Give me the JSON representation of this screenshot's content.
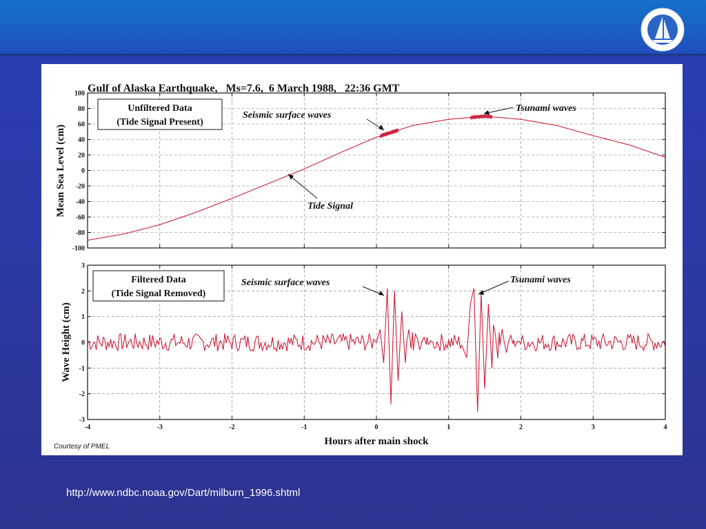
{
  "footer": {
    "url": "http://www.ndbc.noaa.gov/Dart/milburn_1996.shtml"
  },
  "colors": {
    "trace": "#cc1f3a",
    "header_blue": "#1a5fc2",
    "background_blue": "#2b3aa6"
  },
  "logo": {
    "icon": "sailboat-seal-icon"
  },
  "chart_data": {
    "title": "Gulf of Alaska Earthquake,   Ms=7.6,  6 March 1988,   22:36 GMT",
    "courtesy": "Courtesy of PMEL",
    "xlabel": "Hours after main shock",
    "xlim": [
      -4,
      4
    ],
    "xticks": [
      "-4",
      "-3",
      "-2",
      "-1",
      "0",
      "1",
      "2",
      "3",
      "4"
    ],
    "top_panel": {
      "type": "line",
      "ylabel": "Mean Sea Level (cm)",
      "ylim": [
        -100,
        100
      ],
      "yticks": [
        "100",
        "80",
        "60",
        "40",
        "20",
        "0",
        "-20",
        "-40",
        "-60",
        "-80",
        "-100"
      ],
      "box_lines": [
        "Unfiltered Data",
        "(Tide Signal Present)"
      ],
      "annotations": {
        "seismic": "Seismic surface waves",
        "tsunami": "Tsunami waves",
        "tide": "Tide Signal"
      },
      "x": [
        -4,
        -3.5,
        -3,
        -2.5,
        -2,
        -1.5,
        -1,
        -0.5,
        0,
        0.5,
        1,
        1.5,
        2,
        2.5,
        3,
        3.5,
        4
      ],
      "y": [
        -90,
        -82,
        -70,
        -54,
        -36,
        -17,
        2,
        23,
        43,
        58,
        66,
        70,
        66,
        58,
        45,
        33,
        17
      ]
    },
    "bottom_panel": {
      "type": "line",
      "ylabel": "Wave Height (cm)",
      "ylim": [
        -3,
        3
      ],
      "yticks": [
        "3",
        "2",
        "1",
        "0",
        "-1",
        "-2",
        "-3"
      ],
      "box_lines": [
        "Filtered Data",
        "(Tide Signal Removed)"
      ],
      "annotations": {
        "seismic": "Seismic surface waves",
        "tsunami": "Tsunami waves"
      },
      "x": [
        -4,
        -3,
        -2,
        -1,
        0,
        0.05,
        0.1,
        0.15,
        0.2,
        0.25,
        0.3,
        0.35,
        0.4,
        0.5,
        0.7,
        1,
        1.25,
        1.3,
        1.35,
        1.4,
        1.45,
        1.5,
        1.55,
        1.6,
        1.7,
        1.9,
        2,
        3,
        4
      ],
      "y": [
        0,
        0.1,
        0,
        0.1,
        0,
        0.5,
        -0.8,
        2.1,
        -2.4,
        2.0,
        -1.5,
        1.2,
        -0.8,
        0.4,
        0.2,
        0.1,
        -0.6,
        1.5,
        2.1,
        -2.7,
        1.9,
        -1.8,
        1.5,
        -1.0,
        0.4,
        0.1,
        0,
        0.1,
        0
      ]
    }
  }
}
